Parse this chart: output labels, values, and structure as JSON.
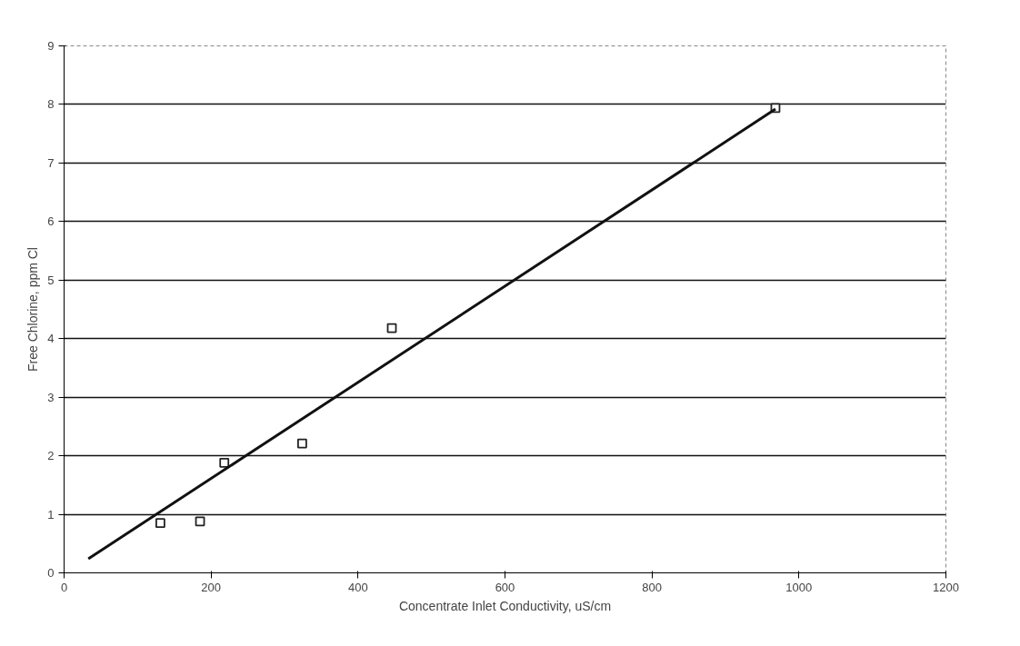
{
  "chart_data": {
    "type": "scatter",
    "xlabel": "Concentrate Inlet Conductivity, uS/cm",
    "ylabel": "Free Chlorine, ppm Cl",
    "xlim": [
      0,
      1200
    ],
    "ylim": [
      0,
      9
    ],
    "xticks": [
      0,
      200,
      400,
      600,
      800,
      1000,
      1200
    ],
    "yticks": [
      0,
      1,
      2,
      3,
      4,
      5,
      6,
      7,
      8,
      9
    ],
    "grid": "y",
    "marker": "square",
    "series": [
      {
        "color": "#222222",
        "x": [
          131,
          185,
          218,
          324,
          446,
          968
        ],
        "values": [
          0.85,
          0.88,
          1.88,
          2.21,
          4.18,
          7.94
        ]
      },
      {
        "type": "line",
        "marker": "none",
        "color": "#111111",
        "x": [
          33,
          968
        ],
        "values": [
          0.24,
          7.92
        ]
      }
    ]
  }
}
